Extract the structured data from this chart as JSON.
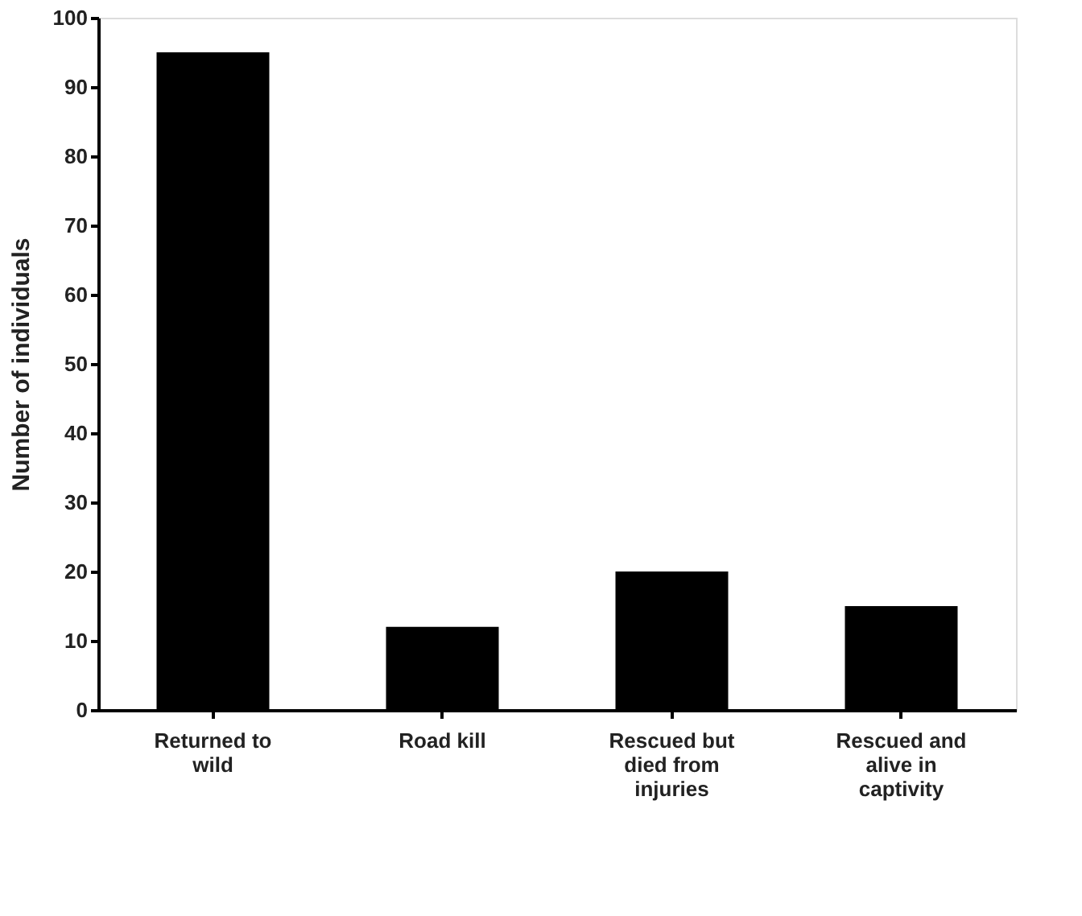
{
  "chart_data": {
    "type": "bar",
    "ylabel": "Number of individuals",
    "categories": [
      "Returned to wild",
      "Road kill",
      "Rescued but died from injuries",
      "Rescued and alive in captivity"
    ],
    "values": [
      95,
      12,
      20,
      15
    ],
    "color": "#000000",
    "ylim": [
      0,
      100
    ],
    "yticks": [
      0,
      10,
      20,
      30,
      40,
      50,
      60,
      70,
      80,
      90,
      100
    ],
    "grid": false
  }
}
